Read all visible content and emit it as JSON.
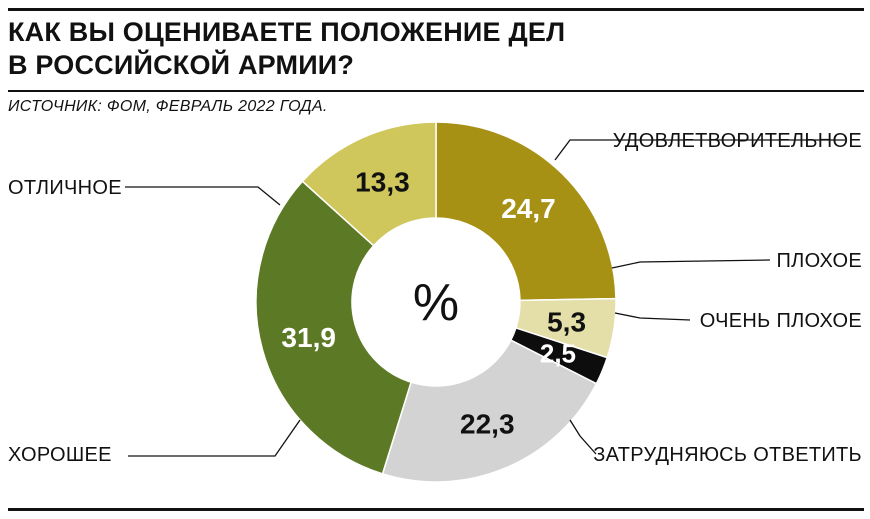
{
  "header": {
    "title_line1": "КАК ВЫ ОЦЕНИВАЕТЕ ПОЛОЖЕНИЕ ДЕЛ",
    "title_line2": "В РОССИЙСКОЙ АРМИИ?",
    "source": "ИСТОЧНИК: ФОМ, ФЕВРАЛЬ 2022 ГОДА."
  },
  "chart_data": {
    "type": "pie",
    "variant": "donut",
    "center_label": "%",
    "slices": [
      {
        "label": "УДОВЛЕТВОРИТЕЛЬНОЕ",
        "value": 24.7,
        "display": "24,7",
        "color": "#a69115",
        "text_color": "#ffffff"
      },
      {
        "label": "ПЛОХОЕ",
        "value": 5.3,
        "display": "5,3",
        "color": "#e4dfa9",
        "text_color": "#111111"
      },
      {
        "label": "ОЧЕНЬ ПЛОХОЕ",
        "value": 2.5,
        "display": "2,5",
        "color": "#0d0d0d",
        "text_color": "#ffffff"
      },
      {
        "label": "ЗАТРУДНЯЮСЬ ОТВЕТИТЬ",
        "value": 22.3,
        "display": "22,3",
        "color": "#d3d3d3",
        "text_color": "#111111"
      },
      {
        "label": "ХОРОШЕЕ",
        "value": 31.9,
        "display": "31,9",
        "color": "#5c7a26",
        "text_color": "#ffffff"
      },
      {
        "label": "ОТЛИЧНОЕ",
        "value": 13.3,
        "display": "13,3",
        "color": "#cfc65c",
        "text_color": "#111111"
      }
    ],
    "legend": "callout-labels"
  }
}
